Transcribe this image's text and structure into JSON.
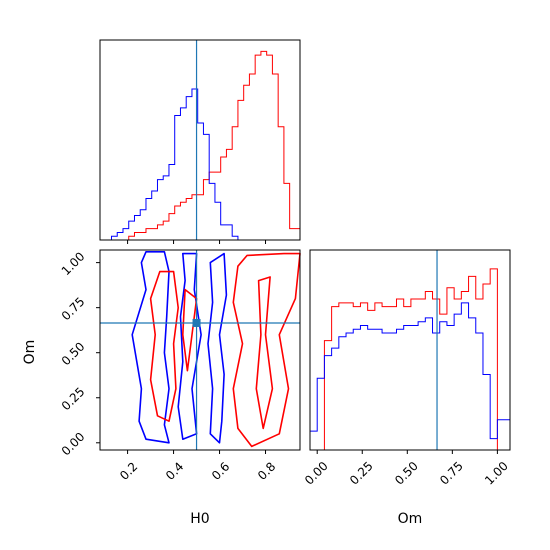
{
  "chart_data": [
    {
      "type": "step-histogram",
      "panel": "H0-marginal",
      "xlim": [
        0.08,
        0.95
      ],
      "truth_x": 0.5,
      "bin_edges": [
        0.08,
        0.105,
        0.13,
        0.155,
        0.18,
        0.205,
        0.23,
        0.255,
        0.28,
        0.305,
        0.33,
        0.355,
        0.38,
        0.405,
        0.43,
        0.455,
        0.48,
        0.505,
        0.53,
        0.555,
        0.58,
        0.605,
        0.63,
        0.655,
        0.68,
        0.705,
        0.73,
        0.755,
        0.78,
        0.805,
        0.83,
        0.855,
        0.88,
        0.905,
        0.93,
        0.95
      ],
      "series": [
        {
          "color": "#ff0000",
          "counts": [
            0,
            0,
            0,
            0,
            0,
            0.02,
            0.04,
            0.04,
            0.06,
            0.06,
            0.08,
            0.1,
            0.14,
            0.18,
            0.2,
            0.22,
            0.24,
            0.24,
            0.32,
            0.36,
            0.36,
            0.44,
            0.48,
            0.6,
            0.74,
            0.82,
            0.88,
            0.98,
            1.0,
            0.98,
            0.88,
            0.6,
            0.3,
            0.06,
            0.06
          ]
        },
        {
          "color": "#0000ff",
          "counts": [
            0,
            0,
            0.02,
            0.04,
            0.06,
            0.1,
            0.13,
            0.16,
            0.22,
            0.26,
            0.32,
            0.34,
            0.4,
            0.66,
            0.7,
            0.76,
            0.8,
            0.62,
            0.56,
            0.3,
            0.2,
            0.08,
            0.08,
            0.02,
            0,
            0,
            0,
            0,
            0,
            0,
            0,
            0,
            0,
            0,
            0
          ]
        }
      ]
    },
    {
      "type": "contour",
      "panel": "H0-vs-Om",
      "xlabel": "H0",
      "ylabel": "Om",
      "xlim": [
        0.08,
        0.95
      ],
      "ylim": [
        -0.04,
        1.07
      ],
      "xticks": [
        "0.2",
        "0.4",
        "0.6",
        "0.8"
      ],
      "xtick_values": [
        0.2,
        0.4,
        0.6,
        0.8
      ],
      "yticks": [
        "0.00",
        "0.25",
        "0.50",
        "0.75",
        "1.00"
      ],
      "ytick_values": [
        0.0,
        0.25,
        0.5,
        0.75,
        1.0
      ],
      "truth": [
        0.5,
        0.665
      ],
      "series": [
        {
          "color": "#0000ff",
          "contours": [
            [
              [
                0.28,
                1.06
              ],
              [
                0.36,
                1.06
              ],
              [
                0.38,
                0.95
              ],
              [
                0.37,
                0.7
              ],
              [
                0.36,
                0.5
              ],
              [
                0.38,
                0.3
              ],
              [
                0.36,
                0.1
              ],
              [
                0.38,
                0.0
              ],
              [
                0.28,
                0.02
              ],
              [
                0.25,
                0.12
              ],
              [
                0.26,
                0.3
              ],
              [
                0.22,
                0.6
              ],
              [
                0.28,
                0.85
              ],
              [
                0.26,
                1.0
              ]
            ],
            [
              [
                0.44,
                1.05
              ],
              [
                0.5,
                1.05
              ],
              [
                0.49,
                0.85
              ],
              [
                0.52,
                0.6
              ],
              [
                0.48,
                0.3
              ],
              [
                0.5,
                0.05
              ],
              [
                0.44,
                0.02
              ],
              [
                0.42,
                0.2
              ],
              [
                0.44,
                0.45
              ],
              [
                0.43,
                0.7
              ],
              [
                0.45,
                0.9
              ]
            ],
            [
              [
                0.56,
                1.0
              ],
              [
                0.62,
                1.05
              ],
              [
                0.63,
                0.82
              ],
              [
                0.6,
                0.6
              ],
              [
                0.62,
                0.38
              ],
              [
                0.61,
                0.12
              ],
              [
                0.6,
                0.0
              ],
              [
                0.56,
                0.05
              ],
              [
                0.57,
                0.3
              ],
              [
                0.55,
                0.55
              ],
              [
                0.57,
                0.78
              ]
            ]
          ]
        },
        {
          "color": "#ff0000",
          "contours": [
            [
              [
                0.68,
                0.98
              ],
              [
                0.72,
                1.04
              ],
              [
                0.88,
                1.05
              ],
              [
                0.95,
                1.05
              ],
              [
                0.93,
                0.8
              ],
              [
                0.86,
                0.6
              ],
              [
                0.9,
                0.3
              ],
              [
                0.86,
                0.05
              ],
              [
                0.74,
                -0.02
              ],
              [
                0.68,
                0.08
              ],
              [
                0.66,
                0.3
              ],
              [
                0.7,
                0.55
              ],
              [
                0.66,
                0.78
              ]
            ],
            [
              [
                0.77,
                0.9
              ],
              [
                0.82,
                0.92
              ],
              [
                0.8,
                0.6
              ],
              [
                0.83,
                0.3
              ],
              [
                0.79,
                0.08
              ],
              [
                0.76,
                0.3
              ],
              [
                0.78,
                0.6
              ]
            ],
            [
              [
                0.34,
                0.95
              ],
              [
                0.4,
                0.95
              ],
              [
                0.42,
                0.75
              ],
              [
                0.4,
                0.55
              ],
              [
                0.41,
                0.3
              ],
              [
                0.38,
                0.12
              ],
              [
                0.33,
                0.15
              ],
              [
                0.3,
                0.35
              ],
              [
                0.32,
                0.6
              ],
              [
                0.3,
                0.8
              ]
            ],
            [
              [
                0.45,
                0.85
              ],
              [
                0.5,
                0.8
              ],
              [
                0.48,
                0.6
              ],
              [
                0.46,
                0.4
              ],
              [
                0.44,
                0.6
              ]
            ]
          ]
        }
      ]
    },
    {
      "type": "step-histogram",
      "panel": "Om-marginal",
      "xlabel": "Om",
      "xlim": [
        -0.04,
        1.07
      ],
      "xticks": [
        "0.00",
        "0.25",
        "0.50",
        "0.75",
        "1.00"
      ],
      "xtick_values": [
        0.0,
        0.25,
        0.5,
        0.75,
        1.0
      ],
      "truth_x": 0.665,
      "bin_edges": [
        -0.04,
        0.0,
        0.04,
        0.08,
        0.12,
        0.16,
        0.2,
        0.24,
        0.28,
        0.32,
        0.36,
        0.4,
        0.44,
        0.48,
        0.52,
        0.56,
        0.6,
        0.64,
        0.68,
        0.72,
        0.76,
        0.8,
        0.84,
        0.88,
        0.92,
        0.96,
        1.0,
        1.04,
        1.07
      ],
      "series": [
        {
          "color": "#ff0000",
          "counts": [
            0,
            0,
            0.58,
            0.76,
            0.78,
            0.78,
            0.76,
            0.78,
            0.74,
            0.78,
            0.76,
            0.76,
            0.8,
            0.76,
            0.8,
            0.8,
            0.84,
            0.8,
            0.72,
            0.86,
            0.8,
            0.84,
            0.92,
            0.8,
            0.88,
            0.96,
            0,
            0
          ]
        },
        {
          "color": "#0000ff",
          "counts": [
            0.1,
            0.38,
            0.5,
            0.54,
            0.6,
            0.62,
            0.64,
            0.66,
            0.64,
            0.64,
            0.62,
            0.62,
            0.64,
            0.66,
            0.66,
            0.68,
            0.7,
            0.62,
            0.68,
            0.66,
            0.72,
            0.78,
            0.7,
            0.62,
            0.4,
            0.06,
            0.16,
            0.16
          ]
        }
      ]
    }
  ],
  "colors": {
    "truth_line": "#1f77b4",
    "red": "#ff0000",
    "blue": "#0000ff"
  }
}
